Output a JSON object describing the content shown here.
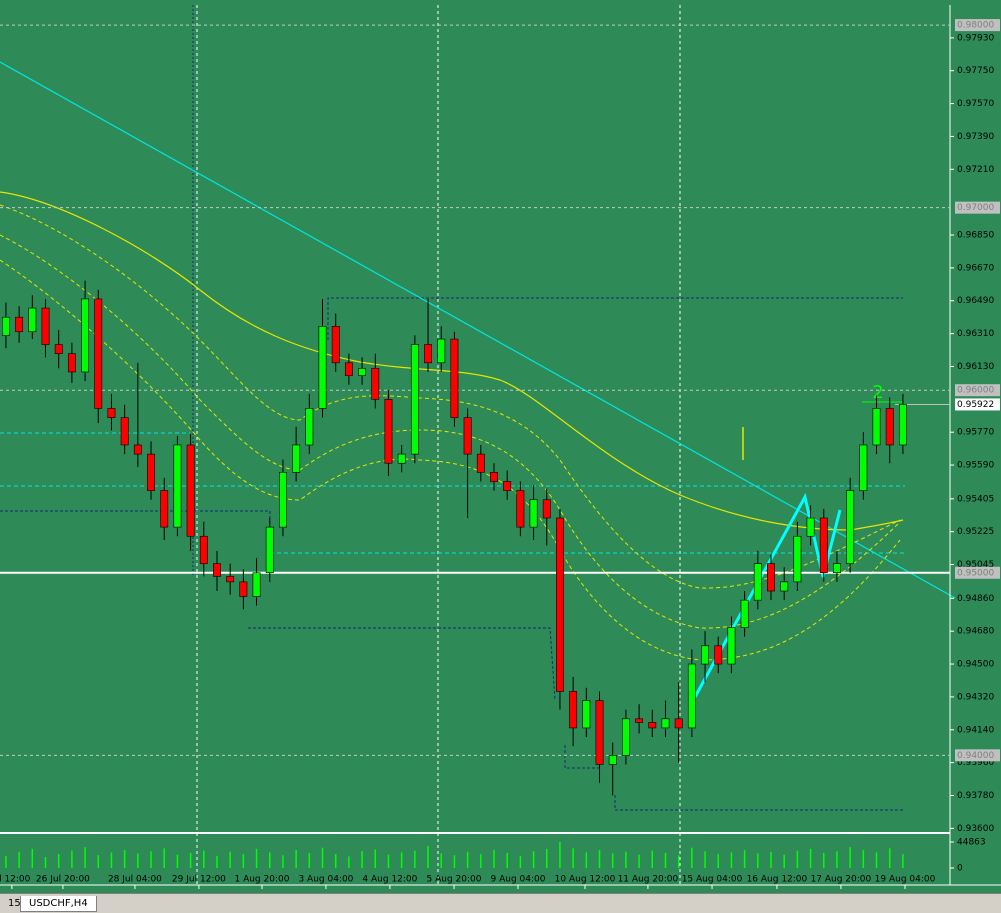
{
  "chart_data": {
    "type": "candlestick",
    "annotation": "2",
    "color_up": "#00ff00",
    "color_down": "#ff0000",
    "open": [
      0.963,
      0.964,
      0.9632,
      0.9645,
      0.9625,
      0.962,
      0.961,
      0.965,
      0.959,
      0.9585,
      0.957,
      0.9565,
      0.9545,
      0.9525,
      0.957,
      0.952,
      0.9505,
      0.9498,
      0.9495,
      0.9487,
      0.95,
      0.9525,
      0.9555,
      0.957,
      0.959,
      0.9635,
      0.9615,
      0.9608,
      0.9612,
      0.9595,
      0.956,
      0.9565,
      0.9625,
      0.9615,
      0.9628,
      0.9585,
      0.9565,
      0.9555,
      0.955,
      0.9545,
      0.9525,
      0.954,
      0.953,
      0.9435,
      0.9415,
      0.943,
      0.9395,
      0.94,
      0.942,
      0.9418,
      0.9415,
      0.942,
      0.9415,
      0.945,
      0.946,
      0.945,
      0.947,
      0.9485,
      0.9505,
      0.949,
      0.9495,
      0.952,
      0.953,
      0.95,
      0.9505,
      0.9545,
      0.957,
      0.959,
      0.957
    ],
    "high": [
      0.9648,
      0.9646,
      0.9652,
      0.965,
      0.9633,
      0.9626,
      0.966,
      0.9655,
      0.9598,
      0.9592,
      0.9615,
      0.9572,
      0.9552,
      0.9575,
      0.9576,
      0.9528,
      0.9512,
      0.9505,
      0.9502,
      0.9508,
      0.953,
      0.9562,
      0.958,
      0.9598,
      0.965,
      0.9642,
      0.962,
      0.9618,
      0.962,
      0.96,
      0.957,
      0.963,
      0.965,
      0.9635,
      0.9632,
      0.959,
      0.957,
      0.956,
      0.9556,
      0.955,
      0.9548,
      0.9546,
      0.9535,
      0.9443,
      0.9437,
      0.9435,
      0.9407,
      0.9425,
      0.9428,
      0.9425,
      0.943,
      0.944,
      0.9458,
      0.9468,
      0.9465,
      0.9476,
      0.949,
      0.9512,
      0.951,
      0.9503,
      0.9528,
      0.9537,
      0.9535,
      0.9512,
      0.9552,
      0.9577,
      0.9597,
      0.9596,
      0.9598
    ],
    "low": [
      0.9623,
      0.9626,
      0.9628,
      0.9618,
      0.9612,
      0.9604,
      0.9605,
      0.9582,
      0.9578,
      0.9565,
      0.9558,
      0.954,
      0.9518,
      0.952,
      0.9512,
      0.9498,
      0.949,
      0.9488,
      0.948,
      0.9482,
      0.9495,
      0.952,
      0.955,
      0.9565,
      0.9585,
      0.961,
      0.9603,
      0.9603,
      0.959,
      0.9553,
      0.9555,
      0.956,
      0.961,
      0.961,
      0.958,
      0.953,
      0.955,
      0.9545,
      0.954,
      0.952,
      0.9518,
      0.9515,
      0.9425,
      0.9405,
      0.941,
      0.9385,
      0.9378,
      0.9395,
      0.9412,
      0.941,
      0.941,
      0.9396,
      0.941,
      0.944,
      0.9445,
      0.9445,
      0.9465,
      0.948,
      0.9485,
      0.9485,
      0.949,
      0.9515,
      0.9495,
      0.9495,
      0.95,
      0.954,
      0.9565,
      0.956,
      0.9565
    ],
    "close": [
      0.964,
      0.9632,
      0.9645,
      0.9625,
      0.962,
      0.961,
      0.965,
      0.959,
      0.9585,
      0.957,
      0.9565,
      0.9545,
      0.9525,
      0.957,
      0.952,
      0.9505,
      0.9498,
      0.9495,
      0.9487,
      0.95,
      0.9525,
      0.9555,
      0.957,
      0.959,
      0.9635,
      0.9615,
      0.9608,
      0.9612,
      0.9595,
      0.956,
      0.9565,
      0.9625,
      0.9615,
      0.9628,
      0.9585,
      0.9565,
      0.9555,
      0.955,
      0.9545,
      0.9525,
      0.954,
      0.953,
      0.9435,
      0.9415,
      0.943,
      0.9395,
      0.94,
      0.942,
      0.9418,
      0.9415,
      0.942,
      0.9415,
      0.945,
      0.946,
      0.945,
      0.947,
      0.9485,
      0.9505,
      0.949,
      0.9495,
      0.952,
      0.953,
      0.95,
      0.9505,
      0.9545,
      0.957,
      0.959,
      0.957,
      0.95922
    ],
    "volume": [
      21000,
      28000,
      33000,
      19000,
      24000,
      30000,
      36000,
      22000,
      27000,
      31000,
      25000,
      29000,
      34000,
      23000,
      26000,
      30000,
      21000,
      28000,
      24000,
      33000,
      27000,
      22000,
      31000,
      26000,
      35000,
      24000,
      20000,
      29000,
      32000,
      23000,
      27000,
      30000,
      38000,
      25000,
      22000,
      28000,
      24000,
      31000,
      26000,
      21000,
      29000,
      33000,
      44863,
      34000,
      27000,
      31000,
      25000,
      28000,
      23000,
      30000,
      26000,
      22000,
      35000,
      29000,
      24000,
      27000,
      31000,
      25000,
      28000,
      23000,
      30000,
      33000,
      26000,
      29000,
      36000,
      31000,
      27000,
      34000,
      24000
    ],
    "volume_color": "#00ff00",
    "volume_ylim": [
      0,
      44863
    ],
    "volume_yticks": [
      44863,
      0
    ],
    "xlim": [
      -0.45,
      71.57
    ],
    "xticks": [
      {
        "value": 0.45,
        "label": "ul 12:00"
      },
      {
        "value": 4.32,
        "label": "26 Jul 20:00"
      },
      {
        "value": 9.78,
        "label": "28 Jul 04:00"
      },
      {
        "value": 14.63,
        "label": "29 Jul 12:00"
      },
      {
        "value": 19.41,
        "label": "1 Aug 20:00"
      },
      {
        "value": 24.26,
        "label": "3 Aug 04:00"
      },
      {
        "value": 29.11,
        "label": "4 Aug 12:00"
      },
      {
        "value": 33.97,
        "label": "5 Aug 20:00"
      },
      {
        "value": 38.82,
        "label": "9 Aug 04:00"
      },
      {
        "value": 43.9,
        "label": "10 Aug 12:00"
      },
      {
        "value": 48.67,
        "label": "11 Aug 20:00"
      },
      {
        "value": 53.53,
        "label": "15 Aug 04:00"
      },
      {
        "value": 58.45,
        "label": "16 Aug 12:00"
      },
      {
        "value": 63.3,
        "label": "17 Aug 20:00"
      },
      {
        "value": 68.16,
        "label": "19 Aug 04:00"
      }
    ],
    "ylim": [
      0.9358,
      0.9811
    ],
    "yticks": [
      {
        "value": 0.9793,
        "label": "0.97930"
      },
      {
        "value": 0.9775,
        "label": "0.97750"
      },
      {
        "value": 0.9757,
        "label": "0.97570"
      },
      {
        "value": 0.9739,
        "label": "0.97390"
      },
      {
        "value": 0.9721,
        "label": "0.97210"
      },
      {
        "value": 0.9685,
        "label": "0.96850"
      },
      {
        "value": 0.9667,
        "label": "0.96670"
      },
      {
        "value": 0.9649,
        "label": "0.96490"
      },
      {
        "value": 0.9631,
        "label": "0.96310"
      },
      {
        "value": 0.9613,
        "label": "0.96130"
      },
      {
        "value": 0.9577,
        "label": "0.95770"
      },
      {
        "value": 0.9559,
        "label": "0.95590"
      },
      0.95405,
      0.95225,
      0.95045,
      {
        "value": 0.9486,
        "label": "0.94860"
      },
      {
        "value": 0.9468,
        "label": "0.94680"
      },
      {
        "value": 0.945,
        "label": "0.94500"
      },
      {
        "value": 0.9432,
        "label": "0.94320"
      },
      {
        "value": 0.9414,
        "label": "0.94140"
      },
      {
        "value": 0.9396,
        "label": "0.93960"
      },
      {
        "value": 0.9378,
        "label": "0.93780"
      },
      {
        "value": 0.936,
        "label": "0.93600"
      }
    ],
    "levels": [
      {
        "value": 0.98,
        "label": "0.98000"
      },
      {
        "value": 0.97,
        "label": "0.97000"
      },
      {
        "value": 0.96,
        "label": "0.96000"
      },
      {
        "value": 0.95,
        "label": "0.95000"
      },
      {
        "value": 0.94,
        "label": "0.94000"
      }
    ],
    "current_price": {
      "value": 0.95922,
      "label": "0.95922"
    },
    "grid": false
  },
  "tabs": [
    "15",
    "USDCHF,H4"
  ]
}
